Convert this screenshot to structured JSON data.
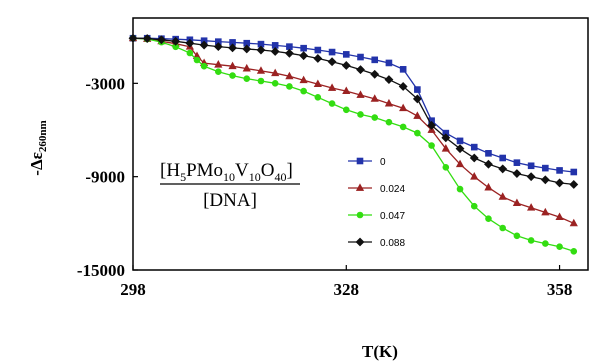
{
  "chart_data": {
    "type": "line",
    "xlabel": "T(K)",
    "ylabel": "-Δε",
    "ylabel_sub": "260nm",
    "x_ticks": [
      298,
      328,
      358
    ],
    "y_ticks": [
      -3000,
      -9000,
      -15000
    ],
    "x_tick_labels": [
      "298",
      "328",
      "358"
    ],
    "y_tick_labels": [
      "-3000",
      "-9000",
      "-15000"
    ],
    "xlim": [
      298,
      362
    ],
    "ylim": [
      -15000,
      1200
    ],
    "grid": false,
    "legend_position": "right",
    "annotation": {
      "numerator": [
        "[H",
        "5",
        "PMo",
        "10",
        "V",
        "10",
        "O",
        "40",
        "]"
      ],
      "denominator": "[DNA]"
    },
    "series": [
      {
        "name": "0",
        "color": "#2233aa",
        "marker": "square",
        "x": [
          298,
          300,
          302,
          304,
          306,
          308,
          310,
          312,
          314,
          316,
          318,
          320,
          322,
          324,
          326,
          328,
          330,
          332,
          334,
          336,
          338,
          340,
          342,
          344,
          346,
          348,
          350,
          352,
          354,
          356,
          358,
          360
        ],
        "y": [
          -100,
          -100,
          -130,
          -160,
          -200,
          -260,
          -320,
          -370,
          -420,
          -480,
          -560,
          -640,
          -740,
          -860,
          -990,
          -1140,
          -1310,
          -1490,
          -1690,
          -2100,
          -3400,
          -5400,
          -6200,
          -6700,
          -7100,
          -7500,
          -7800,
          -8100,
          -8300,
          -8450,
          -8600,
          -8700
        ]
      },
      {
        "name": "0.024",
        "color": "#9b2222",
        "marker": "triangle",
        "x": [
          298,
          300,
          302,
          304,
          306,
          307,
          308,
          310,
          312,
          314,
          316,
          318,
          320,
          322,
          324,
          326,
          328,
          330,
          332,
          334,
          336,
          338,
          340,
          342,
          344,
          346,
          348,
          350,
          352,
          354,
          356,
          358,
          360
        ],
        "y": [
          -100,
          -150,
          -300,
          -450,
          -650,
          -1250,
          -1700,
          -1800,
          -1900,
          -2050,
          -2200,
          -2350,
          -2550,
          -2800,
          -3050,
          -3300,
          -3500,
          -3750,
          -4000,
          -4300,
          -4600,
          -5100,
          -6000,
          -7200,
          -8200,
          -9000,
          -9700,
          -10300,
          -10700,
          -11000,
          -11300,
          -11600,
          -12000
        ]
      },
      {
        "name": "0.047",
        "color": "#33dd11",
        "marker": "circle",
        "x": [
          298,
          300,
          302,
          304,
          306,
          307,
          308,
          310,
          312,
          314,
          316,
          318,
          320,
          322,
          324,
          326,
          328,
          330,
          332,
          334,
          336,
          338,
          340,
          342,
          344,
          346,
          348,
          350,
          352,
          354,
          356,
          358,
          360
        ],
        "y": [
          -100,
          -150,
          -350,
          -650,
          -1050,
          -1500,
          -1900,
          -2250,
          -2500,
          -2700,
          -2850,
          -3000,
          -3200,
          -3500,
          -3900,
          -4300,
          -4700,
          -5000,
          -5200,
          -5500,
          -5800,
          -6200,
          -7000,
          -8400,
          -9800,
          -10900,
          -11700,
          -12300,
          -12800,
          -13100,
          -13300,
          -13500,
          -13800
        ]
      },
      {
        "name": "0.088",
        "color": "#111111",
        "marker": "diamond",
        "x": [
          298,
          300,
          302,
          304,
          306,
          308,
          310,
          312,
          314,
          316,
          318,
          320,
          322,
          324,
          326,
          328,
          330,
          332,
          334,
          336,
          338,
          340,
          342,
          344,
          346,
          348,
          350,
          352,
          354,
          356,
          358,
          360
        ],
        "y": [
          -100,
          -120,
          -200,
          -300,
          -420,
          -540,
          -640,
          -720,
          -790,
          -860,
          -950,
          -1070,
          -1220,
          -1400,
          -1610,
          -1850,
          -2120,
          -2420,
          -2760,
          -3200,
          -4000,
          -5700,
          -6500,
          -7200,
          -7800,
          -8200,
          -8500,
          -8800,
          -9000,
          -9200,
          -9400,
          -9500
        ]
      }
    ]
  }
}
